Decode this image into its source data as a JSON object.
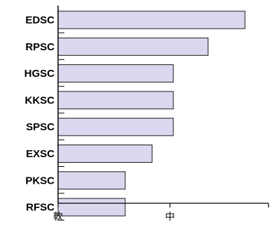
{
  "chart_data": {
    "type": "bar",
    "orientation": "horizontal",
    "categories": [
      "EDSC",
      "RPSC",
      "HGSC",
      "KKSC",
      "SPSC",
      "EXSC",
      "PKSC",
      "RFSC"
    ],
    "values": [
      1.67,
      1.34,
      1.03,
      1.03,
      1.03,
      0.84,
      0.6,
      0.6
    ],
    "xlim": [
      0,
      1.88
    ],
    "x_ticks": [
      {
        "value": 0,
        "label": "軟"
      },
      {
        "value": 1,
        "label": "中"
      },
      {
        "value": 1.88,
        "label": ""
      }
    ],
    "title": "",
    "xlabel": "",
    "ylabel": "",
    "grid": false,
    "legend": "none",
    "colors": {
      "bar_fill": "#d9d8ef",
      "bar_stroke": "#1a1a1a",
      "axis": "#000000"
    }
  }
}
